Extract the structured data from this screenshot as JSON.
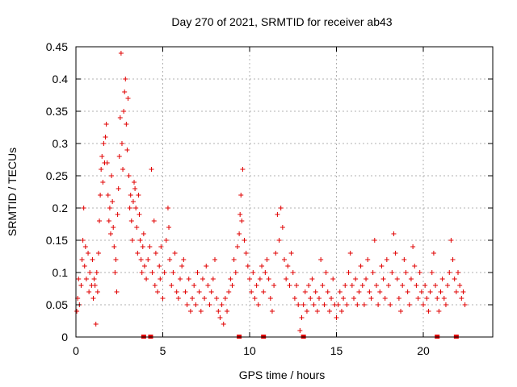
{
  "chart_data": {
    "type": "scatter",
    "title": "Day 270 of 2021, SRMTID for receiver ab43",
    "xlabel": "GPS time / hours",
    "ylabel": "SRMTID / TECUs",
    "xlim": [
      0,
      24
    ],
    "ylim": [
      0,
      0.45
    ],
    "x_ticks": [
      0,
      5,
      10,
      15,
      20
    ],
    "x_tick_labels": [
      "0",
      "5",
      "10",
      "15",
      "20"
    ],
    "y_ticks": [
      0,
      0.05,
      0.1,
      0.15,
      0.2,
      0.25,
      0.3,
      0.35,
      0.4,
      0.45
    ],
    "y_tick_labels": [
      "0",
      "0.05",
      "0.1",
      "0.15",
      "0.2",
      "0.25",
      "0.3",
      "0.35",
      "0.4",
      "0.45"
    ],
    "grid": true,
    "marker": "plus",
    "color": "#e00000",
    "series": [
      {
        "name": "SRMTID",
        "points": [
          [
            0.05,
            0.04
          ],
          [
            0.1,
            0.06
          ],
          [
            0.15,
            0.09
          ],
          [
            0.2,
            0.05
          ],
          [
            0.3,
            0.08
          ],
          [
            0.35,
            0.12
          ],
          [
            0.4,
            0.15
          ],
          [
            0.45,
            0.2
          ],
          [
            0.5,
            0.11
          ],
          [
            0.55,
            0.14
          ],
          [
            0.6,
            0.09
          ],
          [
            0.7,
            0.13
          ],
          [
            0.75,
            0.07
          ],
          [
            0.8,
            0.1
          ],
          [
            0.9,
            0.08
          ],
          [
            0.95,
            0.12
          ],
          [
            1.0,
            0.06
          ],
          [
            1.05,
            0.09
          ],
          [
            1.1,
            0.08
          ],
          [
            1.15,
            0.02
          ],
          [
            1.2,
            0.1
          ],
          [
            1.25,
            0.07
          ],
          [
            1.3,
            0.13
          ],
          [
            1.35,
            0.18
          ],
          [
            1.4,
            0.22
          ],
          [
            1.45,
            0.26
          ],
          [
            1.5,
            0.28
          ],
          [
            1.55,
            0.24
          ],
          [
            1.6,
            0.3
          ],
          [
            1.65,
            0.27
          ],
          [
            1.7,
            0.31
          ],
          [
            1.75,
            0.33
          ],
          [
            1.8,
            0.27
          ],
          [
            1.85,
            0.22
          ],
          [
            1.9,
            0.18
          ],
          [
            1.95,
            0.2
          ],
          [
            2.0,
            0.16
          ],
          [
            2.05,
            0.25
          ],
          [
            2.1,
            0.21
          ],
          [
            2.15,
            0.17
          ],
          [
            2.2,
            0.14
          ],
          [
            2.25,
            0.1
          ],
          [
            2.3,
            0.12
          ],
          [
            2.35,
            0.07
          ],
          [
            2.4,
            0.19
          ],
          [
            2.45,
            0.23
          ],
          [
            2.5,
            0.28
          ],
          [
            2.55,
            0.34
          ],
          [
            2.6,
            0.44
          ],
          [
            2.65,
            0.3
          ],
          [
            2.7,
            0.26
          ],
          [
            2.75,
            0.35
          ],
          [
            2.8,
            0.38
          ],
          [
            2.85,
            0.4
          ],
          [
            2.9,
            0.33
          ],
          [
            2.95,
            0.29
          ],
          [
            3.0,
            0.37
          ],
          [
            3.05,
            0.25
          ],
          [
            3.1,
            0.2
          ],
          [
            3.15,
            0.22
          ],
          [
            3.2,
            0.18
          ],
          [
            3.25,
            0.15
          ],
          [
            3.3,
            0.21
          ],
          [
            3.35,
            0.24
          ],
          [
            3.4,
            0.23
          ],
          [
            3.45,
            0.2
          ],
          [
            3.5,
            0.17
          ],
          [
            3.55,
            0.13
          ],
          [
            3.6,
            0.22
          ],
          [
            3.65,
            0.19
          ],
          [
            3.7,
            0.15
          ],
          [
            3.75,
            0.12
          ],
          [
            3.8,
            0.1
          ],
          [
            3.85,
            0.14
          ],
          [
            3.9,
            0.16
          ],
          [
            3.95,
            0.11
          ],
          [
            4.05,
            0.09
          ],
          [
            4.15,
            0.12
          ],
          [
            4.25,
            0.14
          ],
          [
            4.35,
            0.26
          ],
          [
            4.4,
            0.1
          ],
          [
            4.5,
            0.18
          ],
          [
            4.55,
            0.08
          ],
          [
            4.6,
            0.13
          ],
          [
            4.7,
            0.07
          ],
          [
            4.8,
            0.11
          ],
          [
            4.85,
            0.09
          ],
          [
            4.9,
            0.14
          ],
          [
            5.0,
            0.06
          ],
          [
            5.1,
            0.1
          ],
          [
            5.2,
            0.15
          ],
          [
            5.3,
            0.2
          ],
          [
            5.35,
            0.17
          ],
          [
            5.4,
            0.12
          ],
          [
            5.5,
            0.08
          ],
          [
            5.6,
            0.1
          ],
          [
            5.7,
            0.13
          ],
          [
            5.8,
            0.07
          ],
          [
            5.9,
            0.06
          ],
          [
            6.0,
            0.09
          ],
          [
            6.1,
            0.11
          ],
          [
            6.2,
            0.12
          ],
          [
            6.3,
            0.07
          ],
          [
            6.4,
            0.05
          ],
          [
            6.5,
            0.09
          ],
          [
            6.6,
            0.04
          ],
          [
            6.7,
            0.06
          ],
          [
            6.8,
            0.08
          ],
          [
            6.9,
            0.05
          ],
          [
            7.0,
            0.1
          ],
          [
            7.1,
            0.07
          ],
          [
            7.2,
            0.04
          ],
          [
            7.3,
            0.09
          ],
          [
            7.4,
            0.06
          ],
          [
            7.5,
            0.11
          ],
          [
            7.6,
            0.08
          ],
          [
            7.7,
            0.05
          ],
          [
            7.8,
            0.07
          ],
          [
            7.9,
            0.09
          ],
          [
            8.0,
            0.12
          ],
          [
            8.1,
            0.06
          ],
          [
            8.2,
            0.04
          ],
          [
            8.3,
            0.03
          ],
          [
            8.4,
            0.05
          ],
          [
            8.5,
            0.02
          ],
          [
            8.6,
            0.06
          ],
          [
            8.7,
            0.04
          ],
          [
            8.8,
            0.07
          ],
          [
            8.9,
            0.09
          ],
          [
            9.0,
            0.08
          ],
          [
            9.1,
            0.12
          ],
          [
            9.2,
            0.1
          ],
          [
            9.3,
            0.14
          ],
          [
            9.4,
            0.16
          ],
          [
            9.45,
            0.19
          ],
          [
            9.5,
            0.22
          ],
          [
            9.55,
            0.18
          ],
          [
            9.6,
            0.26
          ],
          [
            9.7,
            0.15
          ],
          [
            9.8,
            0.13
          ],
          [
            9.9,
            0.11
          ],
          [
            10.0,
            0.09
          ],
          [
            10.1,
            0.07
          ],
          [
            10.2,
            0.1
          ],
          [
            10.3,
            0.06
          ],
          [
            10.4,
            0.08
          ],
          [
            10.5,
            0.05
          ],
          [
            10.6,
            0.09
          ],
          [
            10.7,
            0.11
          ],
          [
            10.8,
            0.07
          ],
          [
            10.9,
            0.1
          ],
          [
            11.0,
            0.12
          ],
          [
            11.1,
            0.09
          ],
          [
            11.2,
            0.06
          ],
          [
            11.3,
            0.04
          ],
          [
            11.4,
            0.08
          ],
          [
            11.5,
            0.13
          ],
          [
            11.6,
            0.19
          ],
          [
            11.7,
            0.15
          ],
          [
            11.8,
            0.2
          ],
          [
            11.9,
            0.17
          ],
          [
            12.0,
            0.12
          ],
          [
            12.1,
            0.09
          ],
          [
            12.2,
            0.11
          ],
          [
            12.3,
            0.08
          ],
          [
            12.4,
            0.13
          ],
          [
            12.5,
            0.1
          ],
          [
            12.6,
            0.06
          ],
          [
            12.7,
            0.08
          ],
          [
            12.8,
            0.05
          ],
          [
            12.9,
            0.01
          ],
          [
            13.0,
            0.03
          ],
          [
            13.1,
            0.05
          ],
          [
            13.2,
            0.07
          ],
          [
            13.3,
            0.04
          ],
          [
            13.4,
            0.08
          ],
          [
            13.5,
            0.06
          ],
          [
            13.6,
            0.09
          ],
          [
            13.7,
            0.05
          ],
          [
            13.8,
            0.07
          ],
          [
            13.9,
            0.04
          ],
          [
            14.0,
            0.06
          ],
          [
            14.1,
            0.12
          ],
          [
            14.2,
            0.08
          ],
          [
            14.3,
            0.05
          ],
          [
            14.4,
            0.1
          ],
          [
            14.5,
            0.07
          ],
          [
            14.6,
            0.04
          ],
          [
            14.7,
            0.06
          ],
          [
            14.8,
            0.09
          ],
          [
            14.9,
            0.05
          ],
          [
            15.0,
            0.03
          ],
          [
            15.1,
            0.05
          ],
          [
            15.2,
            0.07
          ],
          [
            15.3,
            0.04
          ],
          [
            15.4,
            0.06
          ],
          [
            15.5,
            0.08
          ],
          [
            15.6,
            0.05
          ],
          [
            15.7,
            0.1
          ],
          [
            15.8,
            0.13
          ],
          [
            15.9,
            0.08
          ],
          [
            16.0,
            0.06
          ],
          [
            16.1,
            0.09
          ],
          [
            16.2,
            0.05
          ],
          [
            16.3,
            0.07
          ],
          [
            16.4,
            0.11
          ],
          [
            16.5,
            0.08
          ],
          [
            16.6,
            0.05
          ],
          [
            16.7,
            0.09
          ],
          [
            16.8,
            0.12
          ],
          [
            16.9,
            0.07
          ],
          [
            17.0,
            0.06
          ],
          [
            17.1,
            0.1
          ],
          [
            17.2,
            0.15
          ],
          [
            17.3,
            0.08
          ],
          [
            17.4,
            0.05
          ],
          [
            17.5,
            0.07
          ],
          [
            17.6,
            0.11
          ],
          [
            17.7,
            0.09
          ],
          [
            17.8,
            0.06
          ],
          [
            17.9,
            0.12
          ],
          [
            18.0,
            0.08
          ],
          [
            18.1,
            0.05
          ],
          [
            18.2,
            0.1
          ],
          [
            18.3,
            0.16
          ],
          [
            18.4,
            0.13
          ],
          [
            18.5,
            0.09
          ],
          [
            18.6,
            0.06
          ],
          [
            18.7,
            0.04
          ],
          [
            18.8,
            0.08
          ],
          [
            18.9,
            0.12
          ],
          [
            19.0,
            0.1
          ],
          [
            19.1,
            0.07
          ],
          [
            19.2,
            0.05
          ],
          [
            19.3,
            0.09
          ],
          [
            19.4,
            0.14
          ],
          [
            19.5,
            0.11
          ],
          [
            19.6,
            0.08
          ],
          [
            19.7,
            0.06
          ],
          [
            19.8,
            0.1
          ],
          [
            19.9,
            0.07
          ],
          [
            20.0,
            0.05
          ],
          [
            20.1,
            0.08
          ],
          [
            20.2,
            0.06
          ],
          [
            20.3,
            0.04
          ],
          [
            20.4,
            0.07
          ],
          [
            20.5,
            0.1
          ],
          [
            20.6,
            0.13
          ],
          [
            20.7,
            0.08
          ],
          [
            20.8,
            0.06
          ],
          [
            20.9,
            0.04
          ],
          [
            21.0,
            0.07
          ],
          [
            21.1,
            0.09
          ],
          [
            21.2,
            0.06
          ],
          [
            21.3,
            0.05
          ],
          [
            21.4,
            0.08
          ],
          [
            21.5,
            0.1
          ],
          [
            21.6,
            0.15
          ],
          [
            21.7,
            0.12
          ],
          [
            21.8,
            0.09
          ],
          [
            21.9,
            0.07
          ],
          [
            22.0,
            0.1
          ],
          [
            22.1,
            0.08
          ],
          [
            22.2,
            0.06
          ],
          [
            22.3,
            0.07
          ],
          [
            22.4,
            0.05
          ]
        ]
      }
    ],
    "gap_markers_x": [
      3.9,
      4.3,
      9.4,
      10.8,
      13.1,
      20.8,
      21.9
    ]
  }
}
